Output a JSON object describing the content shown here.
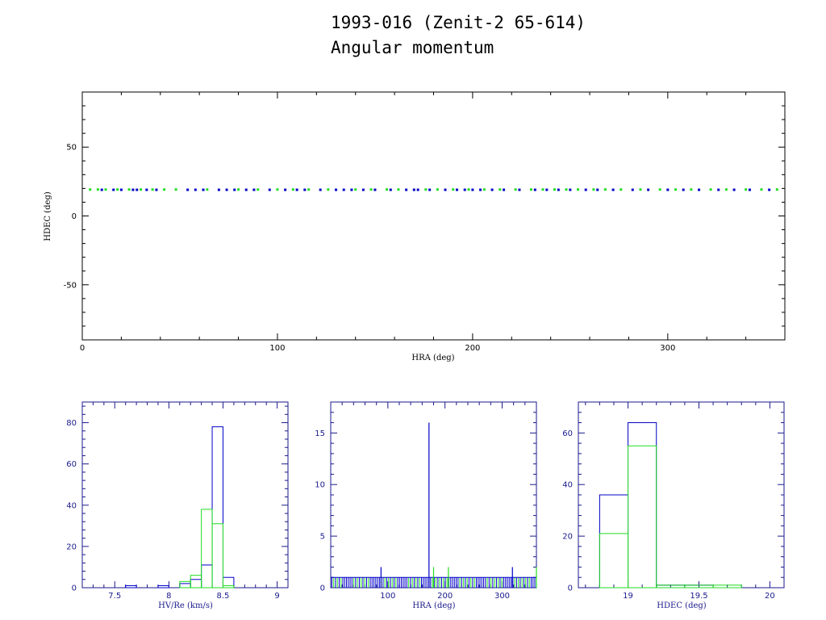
{
  "title_line1": "1993-016 (Zenit-2 65-614)",
  "title_line2": "Angular momentum",
  "colors": {
    "series_a": "#0000c8",
    "series_b": "#22dd22",
    "frame_main": "#000000",
    "frame_hist": "#1a1a8c"
  },
  "chart_data": [
    {
      "type": "scatter",
      "xlabel": "HRA (deg)",
      "ylabel": "HDEC (deg)",
      "xlim": [
        0,
        360
      ],
      "ylim": [
        -90,
        90
      ],
      "xticks": [
        0,
        100,
        200,
        300
      ],
      "yticks": [
        -50,
        0,
        50
      ],
      "series": [
        {
          "color": "#0000c8",
          "y": 19.0,
          "x": [
            10,
            16,
            20,
            26,
            28,
            33,
            38,
            54,
            58,
            62,
            70,
            74,
            78,
            84,
            88,
            96,
            104,
            110,
            114,
            122,
            130,
            134,
            138,
            144,
            150,
            158,
            166,
            170,
            172,
            178,
            186,
            192,
            196,
            200,
            204,
            210,
            216,
            224,
            232,
            238,
            244,
            250,
            258,
            264,
            272,
            282,
            290,
            300,
            308,
            316,
            326,
            334,
            342,
            352
          ]
        },
        {
          "color": "#22dd22",
          "y": 19.2,
          "x": [
            4,
            8,
            12,
            18,
            24,
            30,
            36,
            42,
            48,
            64,
            80,
            90,
            100,
            108,
            116,
            126,
            140,
            148,
            156,
            162,
            176,
            182,
            190,
            198,
            206,
            214,
            222,
            230,
            236,
            242,
            248,
            254,
            262,
            268,
            276,
            286,
            296,
            304,
            312,
            322,
            330,
            340,
            348,
            356
          ]
        }
      ]
    },
    {
      "type": "bar",
      "xlabel": "HV/Re (km/s)",
      "xlim": [
        7.2,
        9.1
      ],
      "ylim": [
        0,
        90
      ],
      "xticks": [
        7.5,
        8,
        8.5,
        9
      ],
      "xticklabels": [
        "7.5",
        "8",
        "8.5",
        "9"
      ],
      "yticks": [
        0,
        20,
        40,
        60,
        80
      ],
      "bin_edges": [
        7.5,
        7.6,
        7.7,
        7.8,
        7.9,
        8.0,
        8.1,
        8.2,
        8.3,
        8.4,
        8.5,
        8.6
      ],
      "series": [
        {
          "color": "#0000c8",
          "values": [
            0,
            1,
            0,
            0,
            1,
            0,
            2,
            4,
            11,
            78,
            5
          ]
        },
        {
          "color": "#22dd22",
          "values": [
            0,
            0,
            0,
            0,
            0,
            0,
            3,
            6,
            38,
            31,
            1
          ]
        }
      ]
    },
    {
      "type": "bar",
      "xlabel": "HRA (deg)",
      "xlim": [
        0,
        360
      ],
      "ylim": [
        0,
        18
      ],
      "xticks": [
        100,
        200,
        300
      ],
      "yticks": [
        0,
        5,
        10,
        15
      ],
      "series": [
        {
          "color": "#0000c8",
          "spikes": [
            {
              "x": 172,
              "value": 16
            },
            {
              "x": 88,
              "value": 2
            },
            {
              "x": 318,
              "value": 2
            }
          ]
        },
        {
          "color": "#22dd22",
          "spikes": [
            {
              "x": 180,
              "value": 2
            },
            {
              "x": 206,
              "value": 2
            },
            {
              "x": 360,
              "value": 2
            }
          ]
        }
      ],
      "baseline_level": 1
    },
    {
      "type": "bar",
      "xlabel": "HDEC (deg)",
      "xlim": [
        18.65,
        20.1
      ],
      "ylim": [
        0,
        72
      ],
      "xticks": [
        19,
        19.5,
        20
      ],
      "xticklabels": [
        "19",
        "19.5",
        "20"
      ],
      "yticks": [
        0,
        20,
        40,
        60
      ],
      "bin_edges": [
        18.8,
        19.0,
        19.2,
        19.4,
        19.6,
        19.8
      ],
      "series": [
        {
          "color": "#0000c8",
          "values": [
            36,
            64,
            1,
            1,
            0
          ]
        },
        {
          "color": "#22dd22",
          "values": [
            21,
            55,
            1,
            1,
            1
          ]
        }
      ]
    }
  ]
}
